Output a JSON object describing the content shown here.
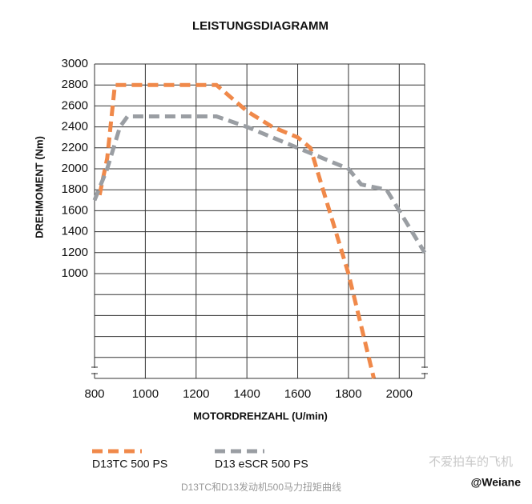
{
  "chart_data": {
    "type": "line",
    "title": "LEISTUNGSDIAGRAMM",
    "x_label": "MOTORDREHZAHL (U/min)",
    "y_label": "DREHMOMENT (Nm)",
    "xlim": [
      800,
      2100
    ],
    "xticks": [
      800,
      1000,
      1200,
      1400,
      1600,
      1800,
      2000
    ],
    "ylim": [
      0,
      3000
    ],
    "yticks": [
      1000,
      1200,
      1400,
      1600,
      1800,
      2000,
      2200,
      2400,
      2600,
      2800,
      3000
    ],
    "ygrid": [
      0,
      200,
      400,
      600,
      800,
      1000,
      1200,
      1400,
      1600,
      1800,
      2000,
      2200,
      2400,
      2600,
      2800,
      3000
    ],
    "grid": true,
    "series": [
      {
        "name": "D13TC 500 PS",
        "color": "#f0894a",
        "x": [
          820,
          850,
          880,
          900,
          1000,
          1200,
          1280,
          1400,
          1500,
          1600,
          1650,
          1700,
          1750,
          1800,
          1850,
          1900
        ],
        "values": [
          1750,
          2100,
          2800,
          2800,
          2800,
          2800,
          2800,
          2550,
          2400,
          2300,
          2200,
          1800,
          1400,
          1000,
          500,
          0
        ]
      },
      {
        "name": "D13 eSCR 500 PS",
        "color": "#9a9ea3",
        "x": [
          800,
          850,
          900,
          930,
          1000,
          1200,
          1280,
          1400,
          1500,
          1600,
          1700,
          1800,
          1850,
          1950,
          2000,
          2050,
          2100
        ],
        "values": [
          1700,
          2000,
          2400,
          2500,
          2500,
          2500,
          2500,
          2400,
          2300,
          2200,
          2100,
          2000,
          1850,
          1800,
          1600,
          1400,
          1200
        ]
      }
    ]
  },
  "caption": "D13TC和D13发动机500马力扭矩曲线",
  "watermark": "不爱拍车的飞机",
  "watermark_handle": "@Weiane"
}
